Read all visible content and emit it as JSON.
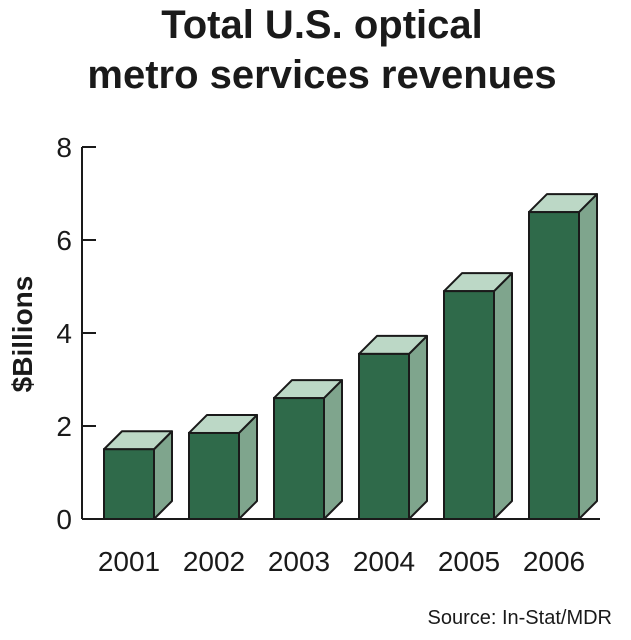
{
  "chart_data": {
    "type": "bar",
    "title_lines": [
      "Total U.S. optical",
      "metro services revenues"
    ],
    "ylabel": "$Billions",
    "xlabel": "",
    "categories": [
      "2001",
      "2002",
      "2003",
      "2004",
      "2005",
      "2006"
    ],
    "values": [
      1.5,
      1.85,
      2.6,
      3.55,
      4.9,
      6.6
    ],
    "ylim": [
      0,
      8
    ],
    "yticks": [
      "0",
      "2",
      "4",
      "6",
      "8"
    ],
    "grid": false,
    "legend": "none",
    "source": "Source: In-Stat/MDR",
    "colors": {
      "front": "#2f6a4a",
      "top": "#bcd8c6",
      "side": "#7fa58d",
      "stroke": "#1a1a1a"
    }
  }
}
